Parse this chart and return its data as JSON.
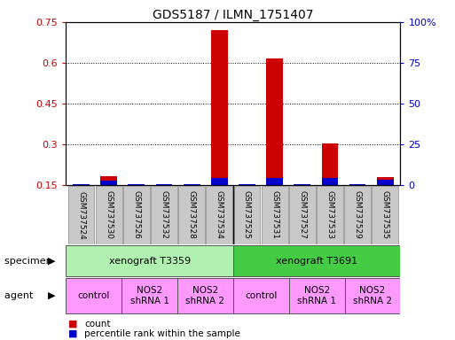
{
  "title": "GDS5187 / ILMN_1751407",
  "samples": [
    "GSM737524",
    "GSM737530",
    "GSM737526",
    "GSM737532",
    "GSM737528",
    "GSM737534",
    "GSM737525",
    "GSM737531",
    "GSM737527",
    "GSM737533",
    "GSM737529",
    "GSM737535"
  ],
  "count_values": [
    0.15,
    0.185,
    0.15,
    0.15,
    0.15,
    0.72,
    0.15,
    0.615,
    0.15,
    0.305,
    0.15,
    0.18
  ],
  "percentile_values": [
    0.5,
    3.0,
    0.5,
    0.5,
    0.5,
    4.5,
    0.5,
    4.5,
    0.5,
    4.5,
    0.5,
    3.5
  ],
  "ylim_left": [
    0.15,
    0.75
  ],
  "ylim_right": [
    0,
    100
  ],
  "yticks_left": [
    0.15,
    0.3,
    0.45,
    0.6,
    0.75
  ],
  "yticks_right": [
    0,
    25,
    50,
    75,
    100
  ],
  "ytick_labels_left": [
    "0.15",
    "0.3",
    "0.45",
    "0.6",
    "0.75"
  ],
  "ytick_labels_right": [
    "0",
    "25",
    "50",
    "75",
    "100%"
  ],
  "specimen_groups": [
    {
      "label": "xenograft T3359",
      "start": 0,
      "end": 6,
      "color": "#B0F0B0"
    },
    {
      "label": "xenograft T3691",
      "start": 6,
      "end": 12,
      "color": "#44CC44"
    }
  ],
  "agent_groups": [
    {
      "label": "control",
      "start": 0,
      "end": 2,
      "color": "#FF99FF"
    },
    {
      "label": "NOS2\nshRNA 1",
      "start": 2,
      "end": 4,
      "color": "#FF99FF"
    },
    {
      "label": "NOS2\nshRNA 2",
      "start": 4,
      "end": 6,
      "color": "#FF99FF"
    },
    {
      "label": "control",
      "start": 6,
      "end": 8,
      "color": "#FF99FF"
    },
    {
      "label": "NOS2\nshRNA 1",
      "start": 8,
      "end": 10,
      "color": "#FF99FF"
    },
    {
      "label": "NOS2\nshRNA 2",
      "start": 10,
      "end": 12,
      "color": "#FF99FF"
    }
  ],
  "bar_color_count": "#CC0000",
  "bar_color_percentile": "#0000CC",
  "bar_width": 0.6,
  "grid_color": "black",
  "left_axis_color": "#CC0000",
  "right_axis_color": "#0000CC",
  "legend_items": [
    {
      "color": "#CC0000",
      "label": "count"
    },
    {
      "color": "#0000CC",
      "label": "percentile rank within the sample"
    }
  ],
  "row_label_specimen": "specimen",
  "row_label_agent": "agent",
  "bg_color": "#FFFFFF",
  "tick_bg_color": "#C8C8C8",
  "figsize": [
    5.13,
    3.84
  ],
  "dpi": 100
}
